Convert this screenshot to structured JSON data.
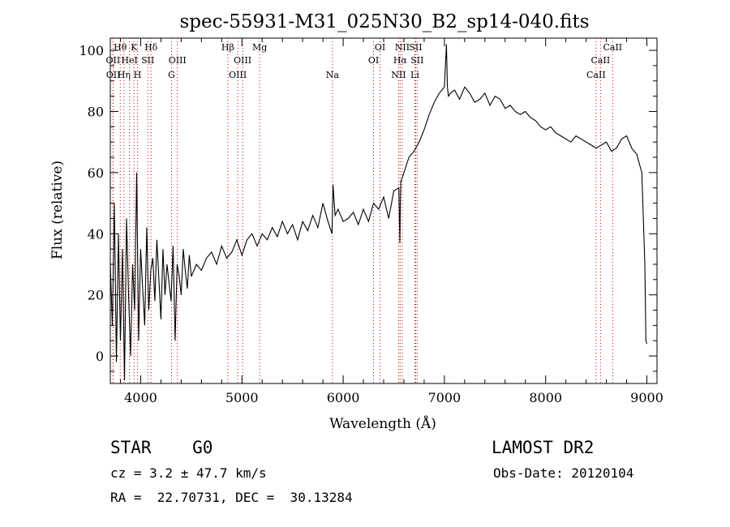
{
  "chart_data": {
    "type": "line",
    "title": "spec-55931-M31_025N30_B2_sp14-040.fits",
    "xlabel": "Wavelength (Å)",
    "ylabel": "Flux (relative)",
    "xlim": [
      3700,
      9100
    ],
    "ylim": [
      -9,
      104
    ],
    "xticks": [
      4000,
      5000,
      6000,
      7000,
      8000,
      9000
    ],
    "yticks": [
      0,
      20,
      40,
      60,
      80,
      100
    ],
    "grid": false,
    "series": [
      {
        "color": "#000000",
        "x": [
          3700,
          3720,
          3740,
          3760,
          3780,
          3800,
          3820,
          3840,
          3860,
          3880,
          3900,
          3920,
          3940,
          3960,
          3980,
          4000,
          4020,
          4040,
          4060,
          4080,
          4100,
          4120,
          4140,
          4160,
          4180,
          4200,
          4220,
          4240,
          4260,
          4280,
          4300,
          4320,
          4340,
          4360,
          4380,
          4400,
          4420,
          4440,
          4460,
          4480,
          4500,
          4550,
          4600,
          4650,
          4700,
          4750,
          4800,
          4850,
          4900,
          4950,
          5000,
          5050,
          5100,
          5150,
          5200,
          5250,
          5300,
          5350,
          5400,
          5450,
          5500,
          5550,
          5600,
          5650,
          5700,
          5750,
          5800,
          5850,
          5890,
          5900,
          5920,
          5950,
          6000,
          6050,
          6100,
          6150,
          6200,
          6250,
          6300,
          6350,
          6400,
          6450,
          6500,
          6550,
          6560,
          6565,
          6570,
          6600,
          6650,
          6700,
          6750,
          6800,
          6850,
          6900,
          6950,
          7000,
          7020,
          7030,
          7040,
          7060,
          7100,
          7150,
          7200,
          7250,
          7300,
          7350,
          7400,
          7450,
          7500,
          7550,
          7600,
          7650,
          7700,
          7750,
          7800,
          7850,
          7900,
          7950,
          8000,
          8050,
          8100,
          8150,
          8200,
          8250,
          8300,
          8350,
          8400,
          8450,
          8500,
          8550,
          8600,
          8650,
          8700,
          8750,
          8800,
          8850,
          8900,
          8950,
          8980,
          8990,
          9000
        ],
        "y": [
          30,
          10,
          50,
          -2,
          40,
          5,
          35,
          -8,
          45,
          20,
          0,
          30,
          15,
          60,
          5,
          35,
          22,
          10,
          42,
          15,
          28,
          32,
          18,
          38,
          25,
          12,
          35,
          20,
          30,
          24,
          18,
          36,
          5,
          30,
          26,
          20,
          35,
          28,
          22,
          33,
          26,
          30,
          28,
          32,
          34,
          30,
          36,
          32,
          34,
          38,
          33,
          38,
          40,
          36,
          40,
          38,
          42,
          39,
          44,
          40,
          43,
          38,
          44,
          41,
          46,
          42,
          50,
          44,
          40,
          56,
          46,
          48,
          44,
          45,
          47,
          43,
          48,
          44,
          50,
          48,
          52,
          45,
          54,
          55,
          37,
          50,
          57,
          60,
          65,
          67,
          70,
          74,
          79,
          83,
          86,
          88,
          102,
          88,
          85,
          86,
          87,
          84,
          88,
          86,
          83,
          84,
          86,
          82,
          85,
          84,
          81,
          82,
          80,
          79,
          80,
          78,
          77,
          75,
          74,
          75,
          73,
          72,
          71,
          70,
          72,
          71,
          70,
          69,
          68,
          69,
          70,
          67,
          68,
          71,
          72,
          68,
          66,
          60,
          30,
          5,
          4
        ]
      }
    ],
    "line_labels": [
      {
        "label": "Hθ",
        "wavelength": 3798,
        "row": 1
      },
      {
        "label": "OII",
        "wavelength": 3727,
        "row": 2
      },
      {
        "label": "OII",
        "wavelength": 3729,
        "row": 3
      },
      {
        "label": "Hη",
        "wavelength": 3835,
        "row": 3
      },
      {
        "label": "K",
        "wavelength": 3934,
        "row": 1
      },
      {
        "label": "HeI",
        "wavelength": 3889,
        "row": 2
      },
      {
        "label": "H",
        "wavelength": 3969,
        "row": 3
      },
      {
        "label": "SII",
        "wavelength": 4070,
        "row": 2
      },
      {
        "label": "Hδ",
        "wavelength": 4102,
        "row": 1
      },
      {
        "label": "OIII",
        "wavelength": 4363,
        "row": 2
      },
      {
        "label": "G",
        "wavelength": 4305,
        "row": 3
      },
      {
        "label": "Hβ",
        "wavelength": 4861,
        "row": 1
      },
      {
        "label": "OIII",
        "wavelength": 5007,
        "row": 2
      },
      {
        "label": "OIII",
        "wavelength": 4959,
        "row": 3
      },
      {
        "label": "Mg",
        "wavelength": 5175,
        "row": 1
      },
      {
        "label": "Na",
        "wavelength": 5894,
        "row": 3
      },
      {
        "label": "OI",
        "wavelength": 6364,
        "row": 1
      },
      {
        "label": "OI",
        "wavelength": 6300,
        "row": 2
      },
      {
        "label": "NII",
        "wavelength": 6584,
        "row": 1
      },
      {
        "label": "SII",
        "wavelength": 6716,
        "row": 1
      },
      {
        "label": "Hα",
        "wavelength": 6563,
        "row": 2
      },
      {
        "label": "SII",
        "wavelength": 6731,
        "row": 2
      },
      {
        "label": "NII",
        "wavelength": 6548,
        "row": 3
      },
      {
        "label": "Li",
        "wavelength": 6708,
        "row": 3
      },
      {
        "label": "CaII",
        "wavelength": 8662,
        "row": 1
      },
      {
        "label": "CaII",
        "wavelength": 8542,
        "row": 2
      },
      {
        "label": "CaII",
        "wavelength": 8498,
        "row": 3
      }
    ],
    "marker_color": "#cc0000"
  },
  "info": {
    "object_class": "STAR    G0",
    "cz": "cz = 3.2 ± 47.7 km/s",
    "radec": "RA =  22.70731, DEC =  30.13284",
    "survey": "LAMOST DR2",
    "obs_date": "Obs-Date: 20120104"
  }
}
